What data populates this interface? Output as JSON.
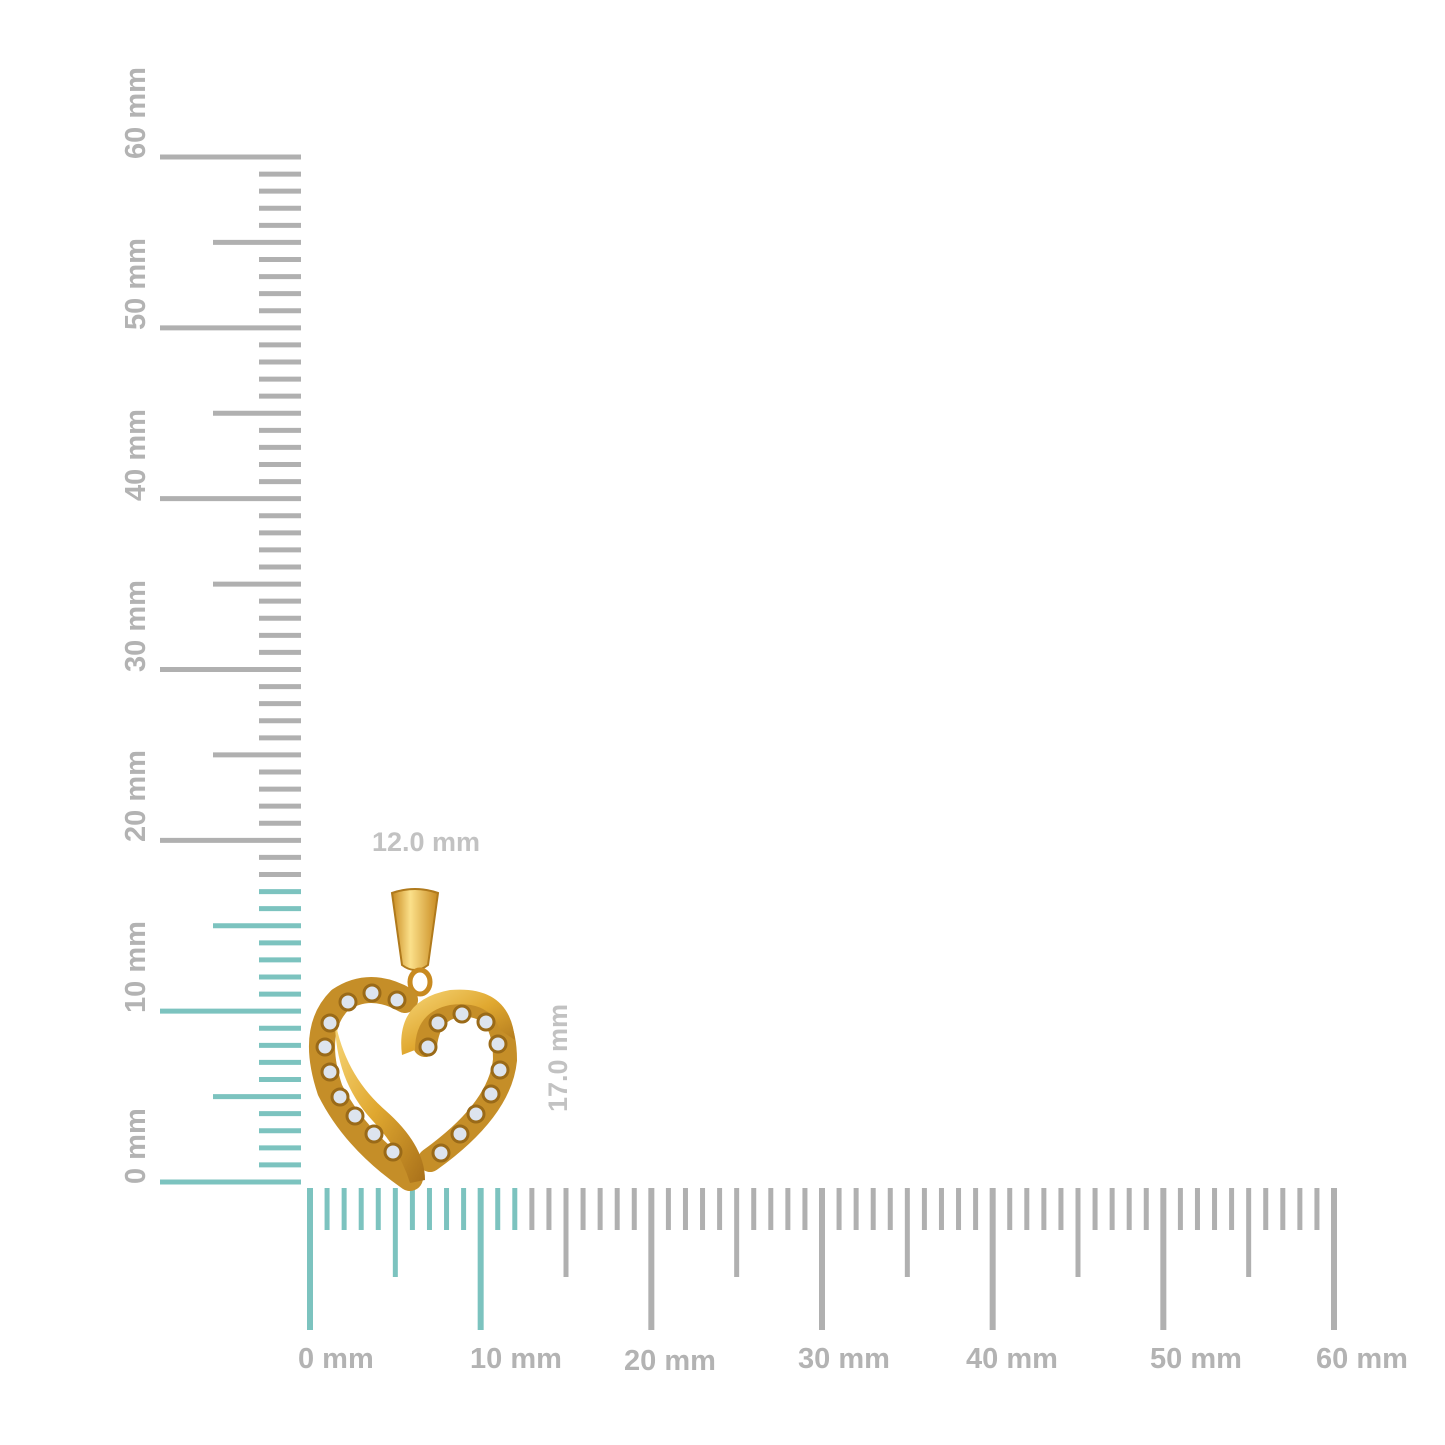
{
  "rulers": {
    "unit": "mm",
    "range": [
      0,
      60
    ],
    "horizontal_labels": [
      "0 mm",
      "10 mm",
      "20 mm",
      "30 mm",
      "40 mm",
      "50 mm",
      "60 mm"
    ],
    "vertical_labels": [
      "0 mm",
      "10 mm",
      "20 mm",
      "30 mm",
      "40 mm",
      "50 mm",
      "60 mm"
    ],
    "highlight_color": "#7cc3bf",
    "base_color": "#b0b0b0",
    "horizontal_highlight_mm": 12,
    "vertical_highlight_mm": 17
  },
  "product": {
    "name_icon": "heart-pendant",
    "width_label": "12.0 mm",
    "height_label": "17.0 mm",
    "metal_color": "#e0a830",
    "stone_color": "#dde4ee"
  }
}
